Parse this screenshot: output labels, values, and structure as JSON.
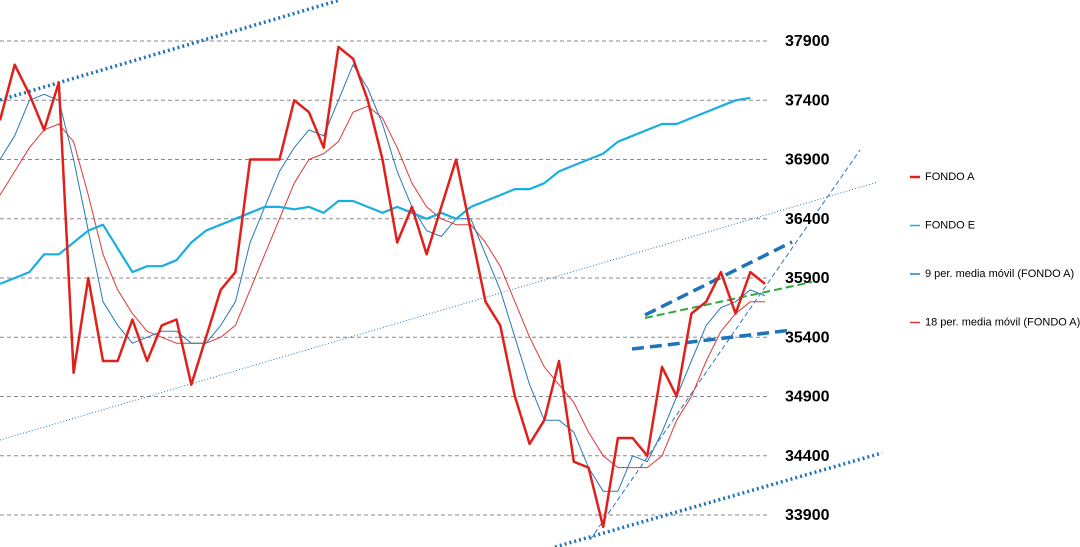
{
  "chart_data": {
    "type": "line",
    "categories": [
      null,
      null,
      null,
      null,
      null,
      null,
      null,
      null,
      null,
      null,
      null,
      null,
      null,
      null,
      null,
      null,
      null,
      null,
      null,
      null,
      null,
      null,
      null,
      null,
      null,
      null,
      null,
      null,
      null,
      null,
      null,
      null,
      null,
      null,
      null,
      null,
      null,
      null,
      null,
      null,
      null,
      null,
      null,
      null,
      null,
      null,
      null,
      null,
      null,
      null,
      null,
      null,
      null
    ],
    "series": [
      {
        "name": "FONDO A",
        "color": "#e0201b",
        "values": [
          37230,
          37700,
          37450,
          37150,
          37550,
          35100,
          35900,
          35200,
          35200,
          35550,
          35200,
          35500,
          35550,
          35000,
          35400,
          35800,
          35950,
          36900,
          36900,
          36900,
          37400,
          37300,
          37000,
          37850,
          37750,
          37400,
          36900,
          36200,
          36500,
          36100,
          36500,
          36900,
          36300,
          35700,
          35500,
          34900,
          34500,
          34700,
          35200,
          34350,
          34300,
          33800,
          34550,
          34550,
          34400,
          35150,
          34900,
          35600,
          35700,
          35950,
          35600,
          35950,
          35850
        ]
      },
      {
        "name": "FONDO E",
        "color": "#1aaee0",
        "values": [
          35850,
          35900,
          35950,
          36100,
          36100,
          36200,
          36300,
          36350,
          36150,
          35950,
          36000,
          36000,
          36050,
          36200,
          36300,
          36350,
          36400,
          36450,
          36500,
          36500,
          36480,
          36500,
          36450,
          36550,
          36550,
          36500,
          36450,
          36500,
          36450,
          36400,
          36450,
          36400,
          36500,
          36550,
          36600,
          36650,
          36650,
          36700,
          36800,
          36850,
          36900,
          36950,
          37050,
          37100,
          37150,
          37200,
          37200,
          37250,
          37300,
          37350,
          37400,
          37420,
          null
        ]
      },
      {
        "name": "9 per. media móvil (FONDO A)",
        "color": "#2878b8",
        "values": [
          36900,
          37100,
          37400,
          37450,
          37400,
          36900,
          36300,
          35700,
          35500,
          35350,
          35400,
          35450,
          35450,
          35350,
          35350,
          35500,
          35700,
          36200,
          36500,
          36800,
          37000,
          37150,
          37100,
          37400,
          37700,
          37500,
          37200,
          36800,
          36500,
          36300,
          36250,
          36400,
          36400,
          36100,
          35800,
          35400,
          35000,
          34700,
          34700,
          34600,
          34300,
          34100,
          34100,
          34400,
          34350,
          34600,
          34900,
          35200,
          35500,
          35650,
          35700,
          35800,
          35750
        ]
      },
      {
        "name": "18 per. media móvil (FONDO A)",
        "color": "#e03838",
        "values": [
          36600,
          36800,
          37000,
          37150,
          37200,
          37050,
          36600,
          36100,
          35800,
          35600,
          35450,
          35400,
          35350,
          35350,
          35350,
          35400,
          35500,
          35800,
          36100,
          36400,
          36700,
          36900,
          36950,
          37050,
          37300,
          37350,
          37250,
          37000,
          36700,
          36500,
          36400,
          36350,
          36350,
          36200,
          36000,
          35700,
          35400,
          35150,
          35000,
          34850,
          34600,
          34400,
          34300,
          34300,
          34300,
          34400,
          34700,
          34900,
          35200,
          35450,
          35600,
          35700,
          35700
        ]
      }
    ],
    "ylim": [
      33630,
      38246
    ],
    "yticks": [
      33900,
      34400,
      34900,
      35400,
      35900,
      36400,
      36900,
      37400,
      37900
    ],
    "grid": true,
    "legend": "right"
  }
}
